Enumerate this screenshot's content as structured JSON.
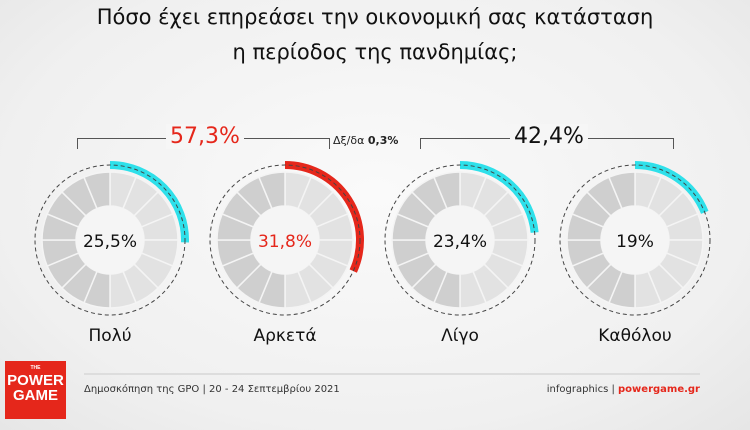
{
  "title": [
    "Πόσο έχει επηρεάσει την οικονομική σας κατάσταση",
    "η περίοδος της πανδημίας;"
  ],
  "groups": {
    "left_total": "57,3%",
    "right_total": "42,4%",
    "diff_label": "Δξ/δα",
    "diff_value": "0,3%"
  },
  "chart_data": {
    "type": "pie",
    "categories": [
      "Πολύ",
      "Αρκετά",
      "Λίγο",
      "Καθόλου"
    ],
    "values": [
      25.5,
      31.8,
      23.4,
      19
    ],
    "value_labels": [
      "25,5%",
      "31,8%",
      "23,4%",
      "19%"
    ],
    "colors": [
      "#2ee0ea",
      "#e5271b",
      "#2ee0ea",
      "#2ee0ea"
    ],
    "label_colors": [
      "#111111",
      "#e5271b",
      "#111111",
      "#111111"
    ]
  },
  "footer": {
    "source": "Δημοσκόπηση της GPO | 20 - 24 Σεπτεμβρίου 2021",
    "credit_prefix": "infographics |",
    "credit_site": "powergame.gr",
    "logo": "THE POWER GAME"
  },
  "logo": {
    "small": "THE",
    "line1": "POWER",
    "line2": "GAME"
  }
}
